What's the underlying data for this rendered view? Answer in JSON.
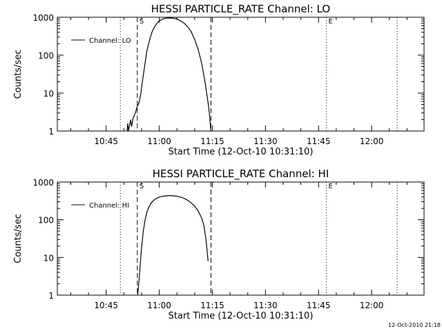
{
  "footer": {
    "timestamp": "12-Oct-2010 21:18"
  },
  "chart_data": [
    {
      "type": "line",
      "title": "HESSI PARTICLE_RATE Channel: LO",
      "xlabel": "Start Time (12-Oct-10 10:31:10)",
      "ylabel": "Counts/sec",
      "yscale": "log",
      "ylim": [
        1,
        1000
      ],
      "y_ticks": [
        "1",
        "10",
        "100",
        "1000"
      ],
      "x_ticks": [
        "10:45",
        "11:00",
        "11:15",
        "11:30",
        "11:45",
        "12:00"
      ],
      "x_tick_minutes": [
        45,
        60,
        75,
        90,
        105,
        120
      ],
      "xlim_minutes": [
        31.2,
        134.8
      ],
      "x_minutes_note": "minutes after 10:00",
      "grid": false,
      "legend": {
        "position": "top-left",
        "entries": [
          "Channel: LO"
        ]
      },
      "series": [
        {
          "name": "Channel: LO",
          "x": [
            50.9,
            51.1,
            51.3,
            51.6,
            51.9,
            52.2,
            52.6,
            53.0,
            53.4,
            53.8,
            54.3,
            54.8,
            55.3,
            56.0,
            56.5,
            57.0,
            57.5,
            58.0,
            58.5,
            59.0,
            59.5,
            60.0,
            61.0,
            62.0,
            63.0,
            64.0,
            65.0,
            66.0,
            67.0,
            68.0,
            69.0,
            70.0,
            71.0,
            72.0,
            73.0,
            74.0,
            74.6
          ],
          "y": [
            1.0,
            1.6,
            1.0,
            1.4,
            2.0,
            1.3,
            2.2,
            2.6,
            3.4,
            4.5,
            5.6,
            10,
            22,
            62,
            130,
            200,
            300,
            420,
            520,
            620,
            720,
            800,
            900,
            950,
            960,
            940,
            900,
            800,
            700,
            560,
            420,
            260,
            140,
            60,
            18,
            4.0,
            1.0
          ]
        }
      ],
      "vertical_lines": [
        {
          "style": "dotted",
          "x_minutes": 49.0,
          "label": ""
        },
        {
          "style": "dashed",
          "x_minutes": 53.8,
          "label": "S"
        },
        {
          "style": "dashed",
          "x_minutes": 74.6,
          "label": ""
        },
        {
          "style": "dotted",
          "x_minutes": 107.2,
          "label": "E"
        },
        {
          "style": "dotted",
          "x_minutes": 127.2,
          "label": ""
        }
      ]
    },
    {
      "type": "line",
      "title": "HESSI PARTICLE_RATE Channel: HI",
      "xlabel": "Start Time (12-Oct-10 10:31:10)",
      "ylabel": "Counts/sec",
      "yscale": "log",
      "ylim": [
        1,
        1000
      ],
      "y_ticks": [
        "1",
        "10",
        "100",
        "1000"
      ],
      "x_ticks": [
        "10:45",
        "11:00",
        "11:15",
        "11:30",
        "11:45",
        "12:00"
      ],
      "x_tick_minutes": [
        45,
        60,
        75,
        90,
        105,
        120
      ],
      "xlim_minutes": [
        31.2,
        134.8
      ],
      "x_minutes_note": "minutes after 10:00",
      "grid": false,
      "legend": {
        "position": "top-left",
        "entries": [
          "Channel: HI"
        ]
      },
      "series": [
        {
          "name": "Channel: HI",
          "x": [
            53.9,
            54.2,
            54.6,
            55.0,
            55.5,
            56.0,
            56.5,
            57.0,
            57.5,
            58.0,
            58.5,
            59.0,
            59.5,
            60.0,
            61.0,
            62.0,
            63.0,
            64.0,
            65.0,
            66.0,
            67.0,
            68.0,
            69.0,
            70.0,
            71.0,
            72.0,
            72.6,
            73.2,
            73.8
          ],
          "y": [
            1.0,
            2.0,
            6.0,
            18,
            50,
            100,
            160,
            210,
            260,
            300,
            330,
            360,
            380,
            400,
            420,
            430,
            440,
            430,
            420,
            400,
            370,
            330,
            280,
            230,
            170,
            110,
            70,
            30,
            8.0
          ]
        }
      ],
      "vertical_lines": [
        {
          "style": "dotted",
          "x_minutes": 49.0,
          "label": ""
        },
        {
          "style": "dashed",
          "x_minutes": 53.8,
          "label": "S"
        },
        {
          "style": "dashed",
          "x_minutes": 74.6,
          "label": ""
        },
        {
          "style": "dotted",
          "x_minutes": 107.2,
          "label": "E"
        },
        {
          "style": "dotted",
          "x_minutes": 127.2,
          "label": ""
        }
      ]
    }
  ]
}
